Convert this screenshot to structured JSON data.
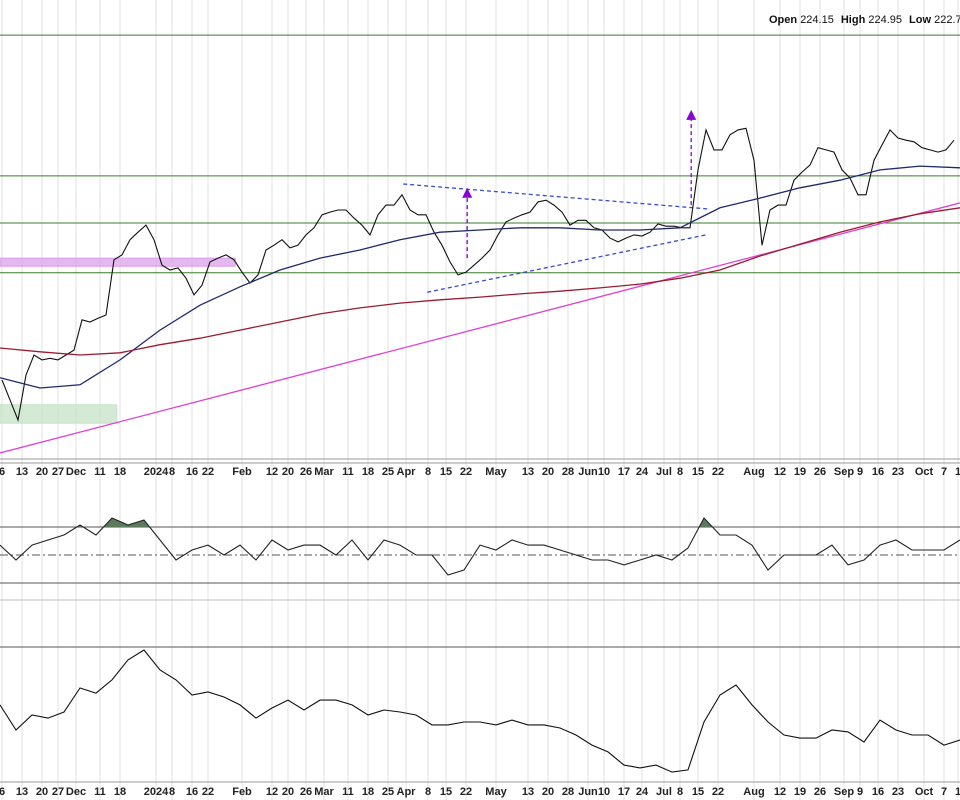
{
  "chart_data": {
    "type": "line",
    "ohlc": [
      {
        "label": "Open",
        "value": "224.15"
      },
      {
        "label": "High",
        "value": "224.95"
      },
      {
        "label": "Low",
        "value": "222.7"
      }
    ],
    "xlim": [
      0,
      240
    ],
    "xticks": [
      {
        "value": 0.5,
        "label": "6"
      },
      {
        "value": 5.5,
        "label": "13"
      },
      {
        "value": 10.5,
        "label": "20"
      },
      {
        "value": 14.5,
        "label": "27"
      },
      {
        "value": 19,
        "label": "Dec"
      },
      {
        "value": 25,
        "label": "11"
      },
      {
        "value": 30,
        "label": "18"
      },
      {
        "value": 39,
        "label": "2024"
      },
      {
        "value": 43,
        "label": "8"
      },
      {
        "value": 48,
        "label": "16"
      },
      {
        "value": 52,
        "label": "22"
      },
      {
        "value": 60.5,
        "label": "Feb"
      },
      {
        "value": 68,
        "label": "12"
      },
      {
        "value": 72,
        "label": "20"
      },
      {
        "value": 76.5,
        "label": "26"
      },
      {
        "value": 81,
        "label": "Mar"
      },
      {
        "value": 87,
        "label": "11"
      },
      {
        "value": 92,
        "label": "18"
      },
      {
        "value": 97,
        "label": "25"
      },
      {
        "value": 101.5,
        "label": "Apr"
      },
      {
        "value": 107,
        "label": "8"
      },
      {
        "value": 111.5,
        "label": "15"
      },
      {
        "value": 116.5,
        "label": "22"
      },
      {
        "value": 124,
        "label": "May"
      },
      {
        "value": 132,
        "label": "13"
      },
      {
        "value": 137,
        "label": "20"
      },
      {
        "value": 142,
        "label": "28"
      },
      {
        "value": 147,
        "label": "Jun"
      },
      {
        "value": 151,
        "label": "10"
      },
      {
        "value": 156,
        "label": "17"
      },
      {
        "value": 160.5,
        "label": "24"
      },
      {
        "value": 166,
        "label": "Jul"
      },
      {
        "value": 170,
        "label": "8"
      },
      {
        "value": 174.5,
        "label": "15"
      },
      {
        "value": 179.5,
        "label": "22"
      },
      {
        "value": 188.5,
        "label": "Aug"
      },
      {
        "value": 195,
        "label": "12"
      },
      {
        "value": 200,
        "label": "19"
      },
      {
        "value": 205,
        "label": "26"
      },
      {
        "value": 211,
        "label": "Sep"
      },
      {
        "value": 215,
        "label": "9"
      },
      {
        "value": 219.5,
        "label": "16"
      },
      {
        "value": 224.5,
        "label": "23"
      },
      {
        "value": 231,
        "label": "Oct"
      },
      {
        "value": 236,
        "label": "7"
      },
      {
        "value": 239.5,
        "label": "1"
      }
    ],
    "ylim": [
      165,
      250
    ],
    "series": [
      {
        "color": "#111111",
        "x": [
          0.5,
          2.5,
          4.5,
          6.5,
          8.5,
          10.5,
          12.5,
          14.5,
          16.5,
          18.5,
          20.5,
          22.5,
          24.5,
          26.5,
          28.5,
          30.5,
          32.5,
          34.5,
          36.5,
          38.5,
          40.5,
          42.5,
          44.5,
          46.5,
          48.5,
          50.5,
          52.5,
          54.5,
          56.5,
          58.5,
          60.5,
          62.5,
          64.5,
          66.5,
          68.5,
          70.5,
          72.5,
          74.5,
          76.5,
          78.5,
          80.5,
          82.5,
          84.5,
          86.5,
          88.5,
          90.5,
          92.5,
          94.5,
          96.5,
          98.5,
          100.5,
          102.5,
          104.5,
          106.5,
          108.5,
          110.5,
          112.5,
          114.5,
          116.5,
          118.5,
          120.5,
          122.5,
          124.5,
          126.5,
          128.5,
          130.5,
          132.5,
          134.5,
          136.5,
          138.5,
          140.5,
          142.5,
          144.5,
          146.5,
          148.5,
          150.5,
          152.5,
          154.5,
          156.5,
          158.5,
          160.5,
          162.5,
          164.5,
          166.5,
          168.5,
          170.5,
          172.5,
          174.5,
          176.5,
          178.5,
          180.5,
          182.5,
          184.5,
          186.5,
          188.5,
          190.5,
          192.5,
          194.5,
          196.5,
          198.5,
          200.5,
          202.5,
          204.5,
          206.5,
          208.5,
          210.5,
          212.5,
          214.5,
          216.5,
          218.5,
          220.5,
          222.5,
          224.5,
          226.5,
          228.5,
          230.5,
          232.5,
          234.5,
          236.5,
          238.5
        ],
        "values": [
          179.8,
          176.1,
          172.4,
          180.7,
          184.4,
          183.5,
          183.8,
          183.5,
          184.4,
          185.3,
          190.9,
          190.5,
          191.2,
          191.8,
          202.0,
          202.9,
          205.7,
          207.1,
          208.4,
          205.7,
          201.0,
          200.1,
          200.5,
          198.6,
          195.5,
          197.3,
          201.6,
          202.3,
          202.9,
          202.0,
          199.7,
          197.7,
          199.2,
          203.8,
          204.7,
          205.7,
          204.2,
          204.7,
          206.6,
          207.9,
          210.3,
          210.8,
          211.2,
          211.2,
          209.7,
          208.4,
          206.6,
          210.3,
          212.1,
          212.1,
          214.0,
          211.2,
          210.3,
          210.3,
          207.1,
          204.7,
          201.6,
          199.2,
          199.7,
          201.0,
          202.3,
          203.8,
          206.6,
          209.0,
          209.7,
          210.3,
          210.8,
          212.7,
          213.0,
          212.1,
          210.8,
          208.4,
          209.3,
          209.3,
          207.9,
          207.5,
          206.0,
          205.3,
          206.0,
          206.6,
          206.4,
          207.1,
          208.6,
          208.2,
          208.2,
          207.9,
          207.9,
          218.6,
          226.0,
          222.3,
          222.3,
          225.1,
          226.0,
          226.3,
          220.4,
          204.7,
          211.2,
          212.1,
          212.1,
          216.7,
          218.2,
          219.5,
          222.7,
          222.3,
          221.9,
          218.6,
          217.1,
          214.0,
          214.0,
          220.4,
          223.2,
          226.0,
          224.5,
          224.1,
          223.8,
          222.7,
          222.3,
          221.9,
          222.3,
          224.1
        ]
      },
      {
        "color": "#1f2a6e",
        "x": [
          0,
          10,
          20,
          30,
          40,
          50,
          60,
          70,
          80,
          90,
          100,
          110,
          120,
          130,
          140,
          150,
          160,
          170,
          180,
          190,
          200,
          210,
          220,
          230,
          240
        ],
        "values": [
          180.2,
          178.3,
          178.9,
          183.5,
          189.0,
          193.6,
          197.0,
          200.1,
          202.3,
          203.8,
          205.7,
          207.1,
          207.5,
          207.9,
          207.9,
          207.5,
          207.5,
          207.9,
          211.6,
          213.4,
          215.3,
          216.7,
          218.6,
          219.3,
          219.0
        ]
      },
      {
        "color": "#9b1b30",
        "x": [
          0,
          10,
          20,
          30,
          40,
          50,
          60,
          70,
          80,
          90,
          100,
          110,
          120,
          130,
          140,
          150,
          160,
          170,
          180,
          190,
          200,
          210,
          220,
          230,
          240
        ],
        "values": [
          185.7,
          185.0,
          184.4,
          184.8,
          186.3,
          187.5,
          189.0,
          190.5,
          192.0,
          193.1,
          194.0,
          194.6,
          195.1,
          195.7,
          196.2,
          196.8,
          197.5,
          198.6,
          200.1,
          202.7,
          204.9,
          207.1,
          209.0,
          210.5,
          211.6
        ]
      }
    ],
    "levels": {
      "color": "#3a7d2c",
      "values": [
        243.5,
        217.5,
        208.8,
        199.6
      ]
    },
    "zones": [
      {
        "color": "#dca0ea",
        "x": [
          0,
          58.8
        ],
        "y": [
          200.8,
          202.3
        ]
      },
      {
        "color": "#c6e3c6",
        "x": [
          0,
          29.2
        ],
        "y": [
          171.8,
          175.2
        ]
      }
    ],
    "trendlines": [
      {
        "color": "#e040d0",
        "dashed": false,
        "x": [
          0,
          240
        ],
        "y": [
          166.3,
          212.5
        ]
      },
      {
        "color": "#3b4bd0",
        "dashed": true,
        "x": [
          100.8,
          176.8
        ],
        "y": [
          216.0,
          211.4
        ]
      },
      {
        "color": "#3b4bd0",
        "dashed": true,
        "x": [
          106.8,
          176.5
        ],
        "y": [
          196.0,
          206.6
        ]
      }
    ],
    "arrows": [
      {
        "color": "#8a00d4",
        "x": 116.8,
        "y": [
          202.3,
          215.3
        ]
      },
      {
        "color": "#8a00d4",
        "x": 172.8,
        "y": [
          212.1,
          229.7
        ]
      }
    ],
    "indicators": [
      {
        "color": "#222222",
        "fill": "#5d7a5d",
        "ylim": [
          0,
          100
        ],
        "levels": [
          70,
          50,
          30
        ],
        "fill_above": 70,
        "x": [
          0,
          4,
          8,
          12,
          16,
          20,
          24,
          28,
          32,
          36,
          40,
          44,
          48,
          52,
          56,
          60,
          64,
          68,
          72,
          76,
          80,
          84,
          88,
          92,
          96,
          100,
          104,
          108,
          112,
          116,
          120,
          124,
          128,
          132,
          136,
          140,
          144,
          148,
          152,
          156,
          160,
          164,
          168,
          172,
          176,
          180,
          184,
          188,
          192,
          196,
          200,
          204,
          208,
          212,
          216,
          220,
          224,
          228,
          232,
          236,
          240
        ],
        "values": [
          57.1,
          46.4,
          57.1,
          60.7,
          64.3,
          71.4,
          64.3,
          76.4,
          71.4,
          75,
          60.7,
          46.4,
          53.6,
          57.1,
          50,
          57.1,
          46.4,
          60.7,
          53.6,
          57.1,
          57.1,
          50,
          60.7,
          46.4,
          60.7,
          57.1,
          50,
          50,
          35.7,
          39.3,
          57.1,
          53.6,
          60.7,
          57.1,
          57.1,
          53.6,
          50,
          46.4,
          46.4,
          42.9,
          46.4,
          50,
          46.4,
          55,
          76.4,
          64.3,
          64.3,
          57.1,
          39.3,
          50,
          50,
          50,
          57.1,
          42.9,
          46.4,
          57.1,
          60.7,
          53.6,
          53.6,
          53.6,
          60.7
        ]
      },
      {
        "color": "#111111",
        "ylim": [
          0,
          100
        ],
        "levels": [
          73.9
        ],
        "x": [
          0,
          4,
          8,
          12,
          16,
          20,
          24,
          28,
          32,
          36,
          40,
          44,
          48,
          52,
          56,
          60,
          64,
          68,
          72,
          76,
          80,
          84,
          88,
          92,
          96,
          100,
          104,
          108,
          112,
          116,
          120,
          124,
          128,
          132,
          136,
          140,
          144,
          148,
          152,
          156,
          160,
          164,
          168,
          172,
          176,
          180,
          184,
          188,
          192,
          196,
          200,
          204,
          208,
          212,
          216,
          220,
          224,
          228,
          232,
          236,
          240
        ],
        "values": [
          41.7,
          27.8,
          36.1,
          34.4,
          37.8,
          51.1,
          48.3,
          55.6,
          66.7,
          72.2,
          61.1,
          55.6,
          47.2,
          48.9,
          46.1,
          41.7,
          34.4,
          40,
          44.4,
          38.9,
          44.4,
          44.4,
          41.7,
          36.1,
          38.9,
          37.8,
          36.1,
          30.6,
          30.6,
          32.2,
          32.2,
          30.6,
          33.3,
          30.6,
          30.6,
          28.9,
          25,
          19.4,
          15.6,
          8.3,
          6.7,
          8.3,
          4.4,
          5.6,
          32.2,
          47.2,
          52.8,
          41.7,
          32.2,
          25,
          23.3,
          23.3,
          27.8,
          26.7,
          21.1,
          33.3,
          27.8,
          25,
          25,
          19.4,
          22.2
        ]
      }
    ]
  }
}
